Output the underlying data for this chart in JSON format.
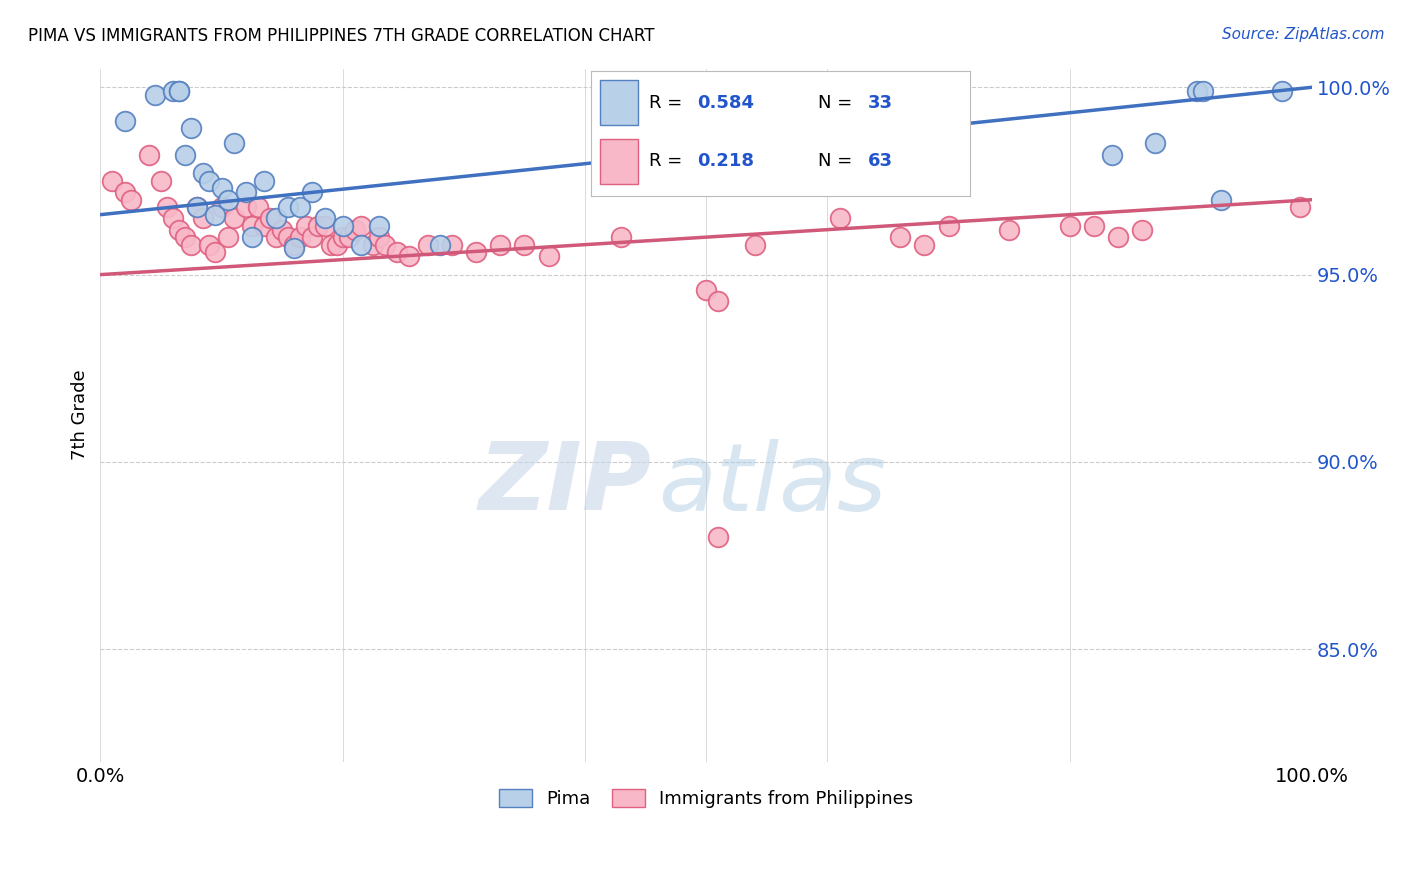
{
  "title": "PIMA VS IMMIGRANTS FROM PHILIPPINES 7TH GRADE CORRELATION CHART",
  "source": "Source: ZipAtlas.com",
  "ylabel": "7th Grade",
  "xlim": [
    0.0,
    1.0
  ],
  "ylim": [
    0.82,
    1.005
  ],
  "yticks": [
    0.85,
    0.9,
    0.95,
    1.0
  ],
  "ytick_labels": [
    "85.0%",
    "90.0%",
    "95.0%",
    "100.0%"
  ],
  "pima_R": 0.584,
  "pima_N": 33,
  "philippines_R": 0.218,
  "philippines_N": 63,
  "pima_color": "#b8d0e8",
  "pima_edge_color": "#5580c0",
  "pima_line_color": "#4070c0",
  "philippines_color": "#f8b8c8",
  "philippines_edge_color": "#e06080",
  "philippines_line_color": "#d05878",
  "legend_text_color": "#2255cc",
  "background_color": "#ffffff",
  "grid_color": "#cccccc",
  "pima_x": [
    0.02,
    0.045,
    0.06,
    0.065,
    0.065,
    0.07,
    0.075,
    0.08,
    0.085,
    0.09,
    0.095,
    0.1,
    0.105,
    0.11,
    0.12,
    0.125,
    0.135,
    0.145,
    0.155,
    0.16,
    0.165,
    0.175,
    0.185,
    0.2,
    0.215,
    0.23,
    0.28,
    0.835,
    0.87,
    0.905,
    0.91,
    0.925,
    0.975
  ],
  "pima_y": [
    0.991,
    0.998,
    0.999,
    0.999,
    0.999,
    0.982,
    0.989,
    0.968,
    0.977,
    0.975,
    0.966,
    0.973,
    0.97,
    0.985,
    0.972,
    0.96,
    0.975,
    0.965,
    0.968,
    0.957,
    0.968,
    0.972,
    0.965,
    0.963,
    0.958,
    0.963,
    0.958,
    0.982,
    0.985,
    0.999,
    0.999,
    0.97,
    0.999
  ],
  "phil_x": [
    0.01,
    0.02,
    0.025,
    0.04,
    0.05,
    0.055,
    0.06,
    0.065,
    0.07,
    0.075,
    0.08,
    0.085,
    0.09,
    0.095,
    0.1,
    0.105,
    0.11,
    0.12,
    0.125,
    0.13,
    0.135,
    0.14,
    0.145,
    0.15,
    0.155,
    0.16,
    0.165,
    0.17,
    0.175,
    0.18,
    0.185,
    0.19,
    0.195,
    0.2,
    0.205,
    0.21,
    0.215,
    0.225,
    0.23,
    0.235,
    0.245,
    0.255,
    0.27,
    0.29,
    0.31,
    0.33,
    0.35,
    0.37,
    0.43,
    0.5,
    0.51,
    0.54,
    0.61,
    0.66,
    0.68,
    0.7,
    0.75,
    0.8,
    0.82,
    0.84,
    0.86,
    0.99,
    0.51
  ],
  "phil_y": [
    0.975,
    0.972,
    0.97,
    0.982,
    0.975,
    0.968,
    0.965,
    0.962,
    0.96,
    0.958,
    0.968,
    0.965,
    0.958,
    0.956,
    0.968,
    0.96,
    0.965,
    0.968,
    0.963,
    0.968,
    0.963,
    0.965,
    0.96,
    0.962,
    0.96,
    0.958,
    0.96,
    0.963,
    0.96,
    0.963,
    0.963,
    0.958,
    0.958,
    0.96,
    0.96,
    0.962,
    0.963,
    0.958,
    0.96,
    0.958,
    0.956,
    0.955,
    0.958,
    0.958,
    0.956,
    0.958,
    0.958,
    0.955,
    0.96,
    0.946,
    0.943,
    0.958,
    0.965,
    0.96,
    0.958,
    0.963,
    0.962,
    0.963,
    0.963,
    0.96,
    0.962,
    0.968,
    0.88
  ],
  "watermark_zip": "ZIP",
  "watermark_atlas": "atlas"
}
